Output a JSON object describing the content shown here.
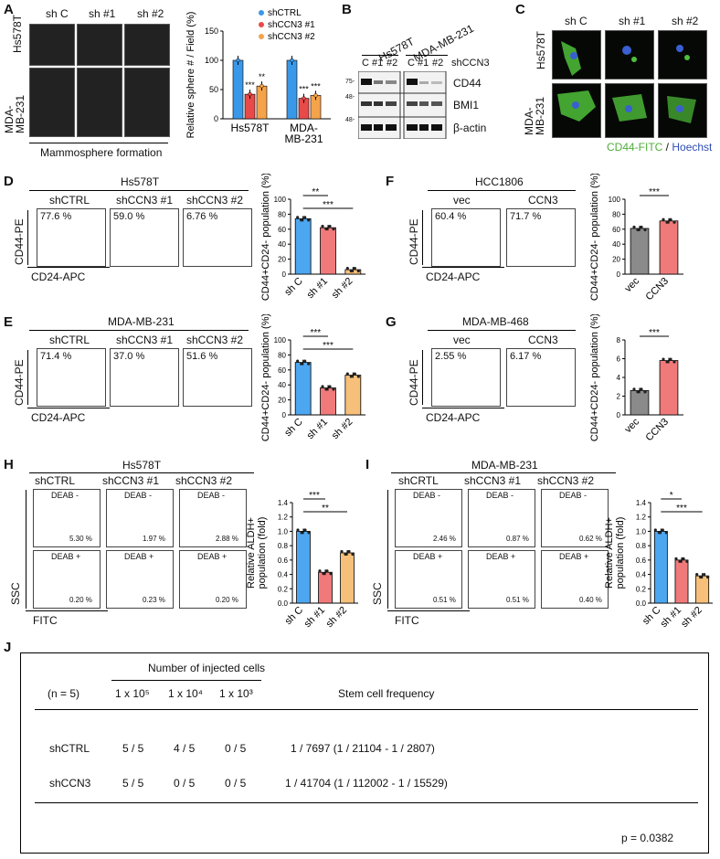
{
  "panels": {
    "A": {
      "letter": "A",
      "col_labels": [
        "sh C",
        "sh #1",
        "sh #2"
      ],
      "row_labels": [
        "Hs578T",
        "MDA-\nMB-231"
      ],
      "caption": "Mammosphere formation",
      "chart_data": {
        "type": "bar",
        "ylabel": "Relative sphere # / Field (%)",
        "categories": [
          "Hs578T",
          "MDA-\nMB-231"
        ],
        "ylim": [
          0,
          150
        ],
        "yticks": [
          0,
          50,
          100,
          150
        ],
        "series": [
          {
            "name": "shCTRL",
            "values": [
              100,
              100
            ],
            "color": "#3a98e8"
          },
          {
            "name": "shCCN3 #1",
            "values": [
              42,
              35
            ],
            "color": "#e84a4a"
          },
          {
            "name": "shCCN3 #2",
            "values": [
              56,
              40
            ],
            "color": "#f5a34a"
          }
        ],
        "significance": [
          [
            "***",
            "**"
          ],
          [
            "***",
            "***"
          ]
        ]
      }
    },
    "B": {
      "letter": "B",
      "cell_lines": [
        "Hs578T",
        "MDA-MB-231"
      ],
      "lane_labels": [
        "C",
        "#1",
        "#2",
        "C",
        "#1",
        "#2"
      ],
      "knockdown": "shCCN3",
      "mw_markers": [
        "75-",
        "48-",
        "48-"
      ],
      "proteins": [
        "CD44",
        "BMI1",
        "β-actin"
      ]
    },
    "C": {
      "letter": "C",
      "col_labels": [
        "sh C",
        "sh #1",
        "sh #2"
      ],
      "row_labels": [
        "Hs578T",
        "MDA-\nMB-231"
      ],
      "stain_green": "CD44-FITC",
      "stain_sep": " / ",
      "stain_blue": "Hoechst"
    },
    "D": {
      "letter": "D",
      "title": "Hs578T",
      "plots": [
        {
          "label": "shCTRL",
          "pct": "77.6 %"
        },
        {
          "label": "shCCN3 #1",
          "pct": "59.0 %"
        },
        {
          "label": "shCCN3 #2",
          "pct": "6.76 %"
        }
      ],
      "yaxis": "CD44-PE",
      "xaxis": "CD24-APC",
      "chart_data": {
        "type": "bar",
        "ylabel": "CD44+CD24- population (%)",
        "categories": [
          "sh C",
          "sh #1",
          "sh #2"
        ],
        "values": [
          74,
          62,
          6
        ],
        "ylim": [
          0,
          100
        ],
        "yticks": [
          0,
          20,
          40,
          60,
          80,
          100
        ],
        "colors": [
          "#4da6f0",
          "#f07a7a",
          "#f7c07a"
        ],
        "significance": [
          "**",
          "***"
        ]
      }
    },
    "E": {
      "letter": "E",
      "title": "MDA-MB-231",
      "plots": [
        {
          "label": "shCTRL",
          "pct": "71.4 %"
        },
        {
          "label": "shCCN3 #1",
          "pct": "37.0 %"
        },
        {
          "label": "shCCN3 #2",
          "pct": "51.6 %"
        }
      ],
      "yaxis": "CD44-PE",
      "xaxis": "CD24-APC",
      "chart_data": {
        "type": "bar",
        "ylabel": "CD44+CD24- population (%)",
        "categories": [
          "sh C",
          "sh #1",
          "sh #2"
        ],
        "values": [
          70,
          36,
          53
        ],
        "ylim": [
          0,
          100
        ],
        "yticks": [
          0,
          20,
          40,
          60,
          80,
          100
        ],
        "colors": [
          "#4da6f0",
          "#f07a7a",
          "#f7c07a"
        ],
        "significance": [
          "***",
          "***"
        ]
      }
    },
    "F": {
      "letter": "F",
      "title": "HCC1806",
      "plots": [
        {
          "label": "vec",
          "pct": "60.4 %"
        },
        {
          "label": "CCN3",
          "pct": "71.7 %"
        }
      ],
      "yaxis": "CD44-PE",
      "xaxis": "CD24-APC",
      "chart_data": {
        "type": "bar",
        "ylabel": "CD44+CD24- population (%)",
        "categories": [
          "vec",
          "CCN3"
        ],
        "values": [
          61,
          71
        ],
        "ylim": [
          0,
          100
        ],
        "yticks": [
          0,
          20,
          40,
          60,
          80,
          100
        ],
        "colors": [
          "#8a8a8a",
          "#f07a7a"
        ],
        "significance": [
          "***"
        ]
      }
    },
    "G": {
      "letter": "G",
      "title": "MDA-MB-468",
      "plots": [
        {
          "label": "vec",
          "pct": "2.55 %"
        },
        {
          "label": "CCN3",
          "pct": "6.17 %"
        }
      ],
      "yaxis": "CD44-PE",
      "xaxis": "CD24-APC",
      "chart_data": {
        "type": "bar",
        "ylabel": "CD44+CD24- population (%)",
        "categories": [
          "vec",
          "CCN3"
        ],
        "values": [
          2.6,
          5.8
        ],
        "ylim": [
          0,
          8
        ],
        "yticks": [
          0,
          2,
          4,
          6,
          8
        ],
        "colors": [
          "#8a8a8a",
          "#f07a7a"
        ],
        "significance": [
          "***"
        ]
      }
    },
    "H": {
      "letter": "H",
      "title": "Hs578T",
      "cols": [
        "shCTRL",
        "shCCN3 #1",
        "shCCN3 #2"
      ],
      "top_tag": "DEAB -",
      "bottom_tag": "DEAB +",
      "top_pct": [
        "5.30 %",
        "1.97 %",
        "2.88 %"
      ],
      "bottom_pct": [
        "0.20 %",
        "0.23 %",
        "0.20 %"
      ],
      "yaxis": "SSC",
      "xaxis": "FITC",
      "chart_data": {
        "type": "bar",
        "ylabel": "Relative ALDH+\npopulation (fold)",
        "categories": [
          "sh C",
          "sh #1",
          "sh #2"
        ],
        "values": [
          1.0,
          0.43,
          0.7
        ],
        "ylim": [
          0,
          1.4
        ],
        "yticks": [
          "0.0",
          "0.2",
          "0.4",
          "0.6",
          "0.8",
          "1.0",
          "1.2",
          "1.4"
        ],
        "colors": [
          "#4da6f0",
          "#f07a7a",
          "#f7c07a"
        ],
        "significance": [
          "***",
          "**"
        ]
      }
    },
    "I": {
      "letter": "I",
      "title": "MDA-MB-231",
      "cols": [
        "shCRTL",
        "shCCN3 #1",
        "shCCN3 #2"
      ],
      "top_tag": "DEAB -",
      "bottom_tag": "DEAB +",
      "top_pct": [
        "2.46 %",
        "0.87 %",
        "0.62 %"
      ],
      "bottom_pct": [
        "0.51 %",
        "0.51 %",
        "0.40 %"
      ],
      "yaxis": "SSC",
      "xaxis": "FITC",
      "chart_data": {
        "type": "bar",
        "ylabel": "Relative ALDH+\npopulation (fold)",
        "categories": [
          "sh C",
          "sh #1",
          "sh #2"
        ],
        "values": [
          1.0,
          0.6,
          0.38
        ],
        "ylim": [
          0,
          1.4
        ],
        "yticks": [
          "0.0",
          "0.2",
          "0.4",
          "0.6",
          "0.8",
          "1.0",
          "1.2",
          "1.4"
        ],
        "colors": [
          "#4da6f0",
          "#f07a7a",
          "#f7c07a"
        ],
        "significance": [
          "*",
          "***"
        ]
      }
    },
    "J": {
      "letter": "J",
      "group_header": "Number of injected cells",
      "n_label": "(n = 5)",
      "col_headers": [
        "1 x 10⁵",
        "1 x 10⁴",
        "1 x 10³",
        "Stem cell frequency"
      ],
      "rows": [
        {
          "name": "shCTRL",
          "cells": [
            "5 / 5",
            "4 / 5",
            "0 / 5"
          ],
          "freq": "1 / 7697 (1 / 21104 - 1 / 2807)"
        },
        {
          "name": "shCCN3",
          "cells": [
            "5 / 5",
            "0 / 5",
            "0 / 5"
          ],
          "freq": "1 / 41704 (1 / 112002 - 1 / 15529)"
        }
      ],
      "pvalue": "p = 0.0382"
    }
  }
}
